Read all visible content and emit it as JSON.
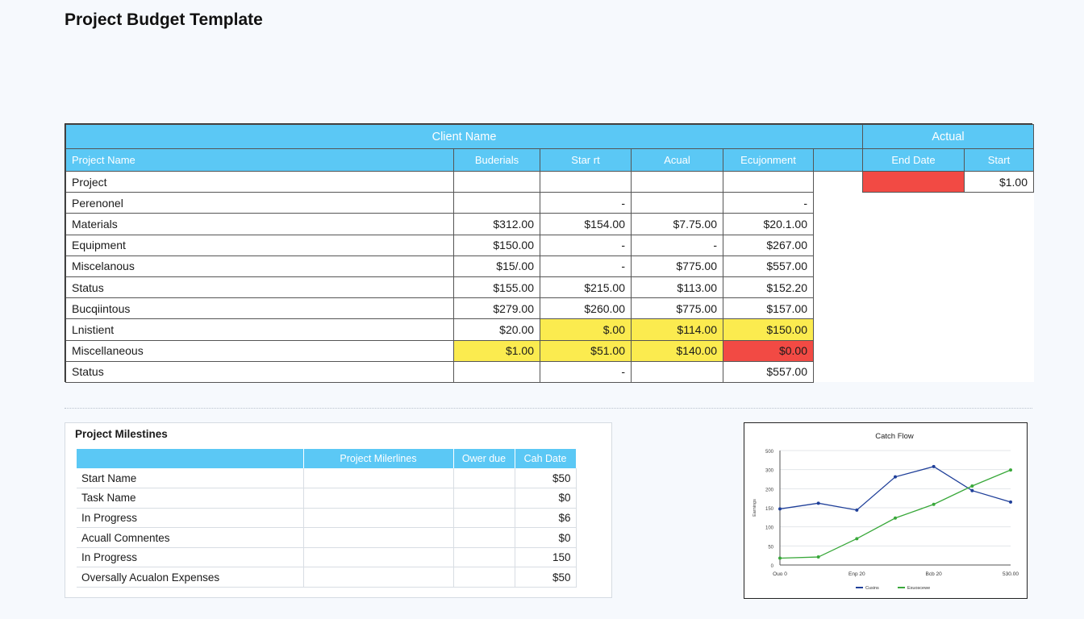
{
  "page": {
    "title": "Project Budget Template"
  },
  "budget": {
    "header_top": [
      "Client Name",
      "Actual"
    ],
    "columns": [
      "Project Name",
      "Buderials",
      "Star rt",
      "Acual",
      "Ecujonment",
      "",
      "End Date",
      "Start"
    ],
    "rows": [
      {
        "label": "Project",
        "cells": [
          "",
          "",
          "",
          ""
        ],
        "end": "",
        "start": "$1.00"
      },
      {
        "label": "Perenonel",
        "cells": [
          "",
          "-",
          "",
          "-"
        ]
      },
      {
        "label": "Materials",
        "cells": [
          "$312.00",
          "$154.00",
          "$7.75.00",
          "$20.1.00"
        ]
      },
      {
        "label": "Equipment",
        "cells": [
          "$150.00",
          "-",
          "-",
          "$267.00"
        ]
      },
      {
        "label": "Miscelanous",
        "cells": [
          "$15/.00",
          "-",
          "$775.00",
          "$557.00"
        ]
      },
      {
        "label": "Status",
        "cells": [
          "$155.00",
          "$215.00",
          "$113.00",
          "$152.20"
        ]
      },
      {
        "label": "Bucqiintous",
        "cells": [
          "$279.00",
          "$260.00",
          "$775.00",
          "$157.00"
        ]
      },
      {
        "label": "Lnistient",
        "cells": [
          "$20.00",
          "$.00",
          "$114.00",
          "$150.00"
        ]
      },
      {
        "label": "Miscellaneous",
        "cells": [
          "$1.00",
          "$51.00",
          "$140.00",
          "$0.00"
        ]
      },
      {
        "label": "Status",
        "cells": [
          "",
          "-",
          "",
          "$557.00"
        ]
      }
    ],
    "colors": {
      "header": "#5bc8f5",
      "highlight_yellow": "#fbeb4f",
      "highlight_red": "#f24a44"
    }
  },
  "milestones": {
    "title": "Project Milestines",
    "columns": [
      "",
      "Project Milerlines",
      "Ower due",
      "Cah Date"
    ],
    "rows": [
      {
        "label": "Start Name",
        "value": "$50"
      },
      {
        "label": "Task Name",
        "value": "$0"
      },
      {
        "label": "In Progress",
        "value": "$6"
      },
      {
        "label": "Acuall Comnentes",
        "value": "$0"
      },
      {
        "label": "In Progress",
        "value": "150"
      },
      {
        "label": "Oversally Acualon Expenses",
        "value": "$50"
      }
    ]
  },
  "chart_data": {
    "type": "line",
    "title": "Catch Flow",
    "ylabel": "Earnings",
    "ylim": [
      0,
      500
    ],
    "y_ticks": [
      "0",
      "50",
      "100",
      "150",
      "200",
      "300",
      "500"
    ],
    "x_ticks": [
      "Ouo 0",
      "Enp 20",
      "Bcb 20",
      "530.00"
    ],
    "series": [
      {
        "name": "Cusins",
        "color": "#1f3f99",
        "points": [
          [
            0,
            245
          ],
          [
            1,
            270
          ],
          [
            2,
            240
          ],
          [
            3,
            385
          ],
          [
            4,
            430
          ],
          [
            5,
            325
          ],
          [
            6,
            275
          ]
        ]
      },
      {
        "name": "Exuoscewe",
        "color": "#39a83a",
        "points": [
          [
            0,
            30
          ],
          [
            1,
            35
          ],
          [
            2,
            115
          ],
          [
            3,
            205
          ],
          [
            4,
            265
          ],
          [
            5,
            345
          ],
          [
            6,
            415
          ]
        ]
      }
    ],
    "legend_position": "bottom"
  }
}
